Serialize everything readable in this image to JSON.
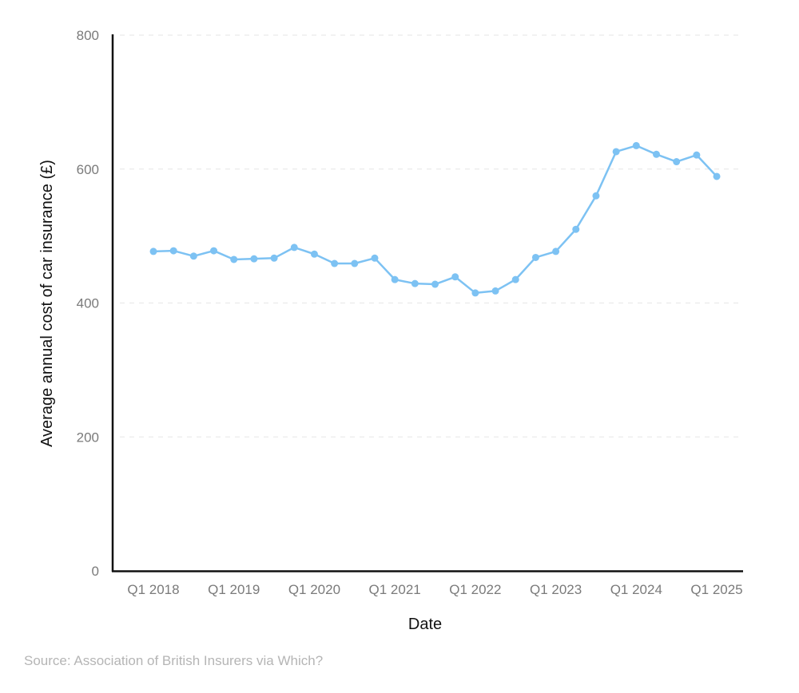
{
  "chart_data": {
    "type": "line",
    "title": "",
    "xlabel": "Date",
    "ylabel": "Average annual cost of car insurance (£)",
    "ylim": [
      0,
      800
    ],
    "yticks": [
      0,
      200,
      400,
      600,
      800
    ],
    "xtick_labels": [
      "Q1 2018",
      "Q1 2019",
      "Q1 2020",
      "Q1 2021",
      "Q1 2022",
      "Q1 2023",
      "Q1 2024",
      "Q1 2025"
    ],
    "grid": "horizontal dashed",
    "series": [
      {
        "name": "Average annual cost",
        "color": "#7dc2f3",
        "x": [
          "Q1 2018",
          "Q2 2018",
          "Q3 2018",
          "Q4 2018",
          "Q1 2019",
          "Q2 2019",
          "Q3 2019",
          "Q4 2019",
          "Q1 2020",
          "Q2 2020",
          "Q3 2020",
          "Q4 2020",
          "Q1 2021",
          "Q2 2021",
          "Q3 2021",
          "Q4 2021",
          "Q1 2022",
          "Q2 2022",
          "Q3 2022",
          "Q4 2022",
          "Q1 2023",
          "Q2 2023",
          "Q3 2023",
          "Q4 2023",
          "Q1 2024",
          "Q2 2024",
          "Q3 2024",
          "Q4 2024",
          "Q1 2025"
        ],
        "values": [
          477,
          478,
          470,
          478,
          465,
          466,
          467,
          483,
          473,
          459,
          459,
          467,
          435,
          429,
          428,
          439,
          415,
          418,
          435,
          468,
          477,
          510,
          560,
          626,
          635,
          622,
          611,
          621,
          589
        ]
      }
    ],
    "source": "Source: Association of British Insurers via Which?"
  }
}
